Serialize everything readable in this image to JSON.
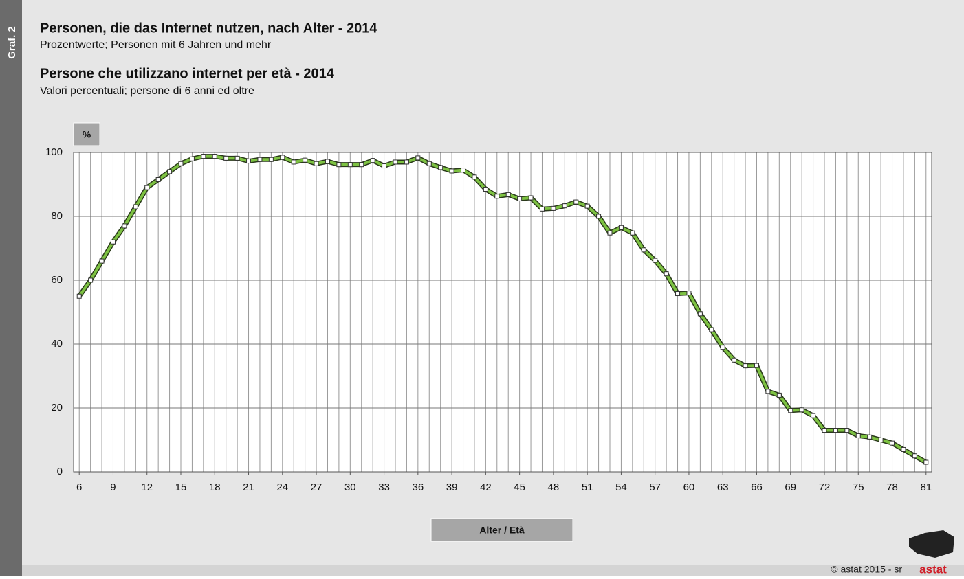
{
  "chart_data": {
    "type": "line",
    "label": "Graf. 2",
    "title": "Personen, die das Internet nutzen, nach Alter - 2014",
    "subtitle": "Prozentwerte; Personen mit 6 Jahren und mehr",
    "title2": "Persone che utilizzano internet per età - 2014",
    "subtitle2": "Valori percentuali; persone di 6 anni ed oltre",
    "ylabel": "%",
    "xlabel": "Alter / Età",
    "credit": "© astat 2015 - sr",
    "logo": "astat",
    "x": [
      6,
      7,
      8,
      9,
      10,
      11,
      12,
      13,
      14,
      15,
      16,
      17,
      18,
      19,
      20,
      21,
      22,
      23,
      24,
      25,
      26,
      27,
      28,
      29,
      30,
      31,
      32,
      33,
      34,
      35,
      36,
      37,
      38,
      39,
      40,
      41,
      42,
      43,
      44,
      45,
      46,
      47,
      48,
      49,
      50,
      51,
      52,
      53,
      54,
      55,
      56,
      57,
      58,
      59,
      60,
      61,
      62,
      63,
      64,
      65,
      66,
      67,
      68,
      69,
      70,
      71,
      72,
      73,
      74,
      75,
      76,
      77,
      78,
      79,
      80,
      81
    ],
    "series": [
      {
        "color": "#7dc242",
        "values": [
          55,
          60,
          66,
          72,
          77,
          83,
          89,
          91.5,
          94,
          96.5,
          98,
          98.8,
          98.8,
          98.2,
          98.2,
          97.3,
          97.8,
          97.8,
          98.5,
          97,
          97.6,
          96.5,
          97.2,
          96.2,
          96.2,
          96.2,
          97.5,
          95.8,
          97,
          97,
          98.3,
          96.5,
          95.3,
          94.2,
          94.5,
          92.3,
          88.5,
          86.3,
          86.8,
          85.5,
          85.8,
          82.3,
          82.5,
          83.3,
          84.5,
          83.2,
          80,
          74.8,
          76.5,
          74.8,
          69.5,
          66.2,
          62,
          55.8,
          56,
          49.5,
          44.5,
          39,
          35,
          33.2,
          33.3,
          25.2,
          24,
          19.2,
          19.4,
          17.6,
          13,
          13,
          13,
          11.3,
          10.9,
          10,
          9,
          7,
          5,
          3
        ]
      }
    ],
    "xlim": [
      5.5,
      81.5
    ],
    "xticks": [
      6,
      9,
      12,
      15,
      18,
      21,
      24,
      27,
      30,
      33,
      36,
      39,
      42,
      45,
      48,
      51,
      54,
      57,
      60,
      63,
      66,
      69,
      72,
      75,
      78,
      81
    ],
    "ylim": [
      0,
      100
    ],
    "yticks": [
      0,
      20,
      40,
      60,
      80,
      100
    ],
    "grid": true
  }
}
